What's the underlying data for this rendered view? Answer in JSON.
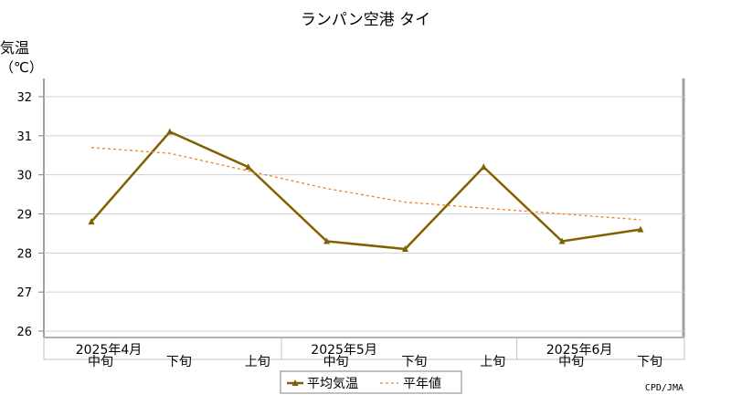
{
  "chart_data": {
    "type": "line",
    "title": "ランパン空港 タイ",
    "ylabel_line1": "気温",
    "ylabel_line2": "（℃）",
    "ylim": [
      26,
      32
    ],
    "yticks": [
      "26",
      "27",
      "28",
      "29",
      "30",
      "31",
      "32"
    ],
    "grid": true,
    "x_period_labels": [
      "中旬",
      "下旬",
      "上旬",
      "中旬",
      "下旬",
      "上旬",
      "中旬",
      "下旬"
    ],
    "x_month_labels": [
      {
        "label": "2025年4月",
        "index": 0
      },
      {
        "label": "2025年5月",
        "index": 3
      },
      {
        "label": "2025年6月",
        "index": 6
      }
    ],
    "series": [
      {
        "name": "平均気温",
        "color": "#806000",
        "style": "solid-triangle",
        "values": [
          28.8,
          31.1,
          30.2,
          28.3,
          28.1,
          30.2,
          28.3,
          28.6
        ]
      },
      {
        "name": "平年値",
        "color": "#f08020",
        "style": "dotted",
        "values": [
          30.7,
          30.55,
          30.1,
          29.65,
          29.3,
          29.15,
          29.0,
          28.85
        ]
      }
    ],
    "legend_position": "bottom-center",
    "credit": "CPD/JMA"
  }
}
